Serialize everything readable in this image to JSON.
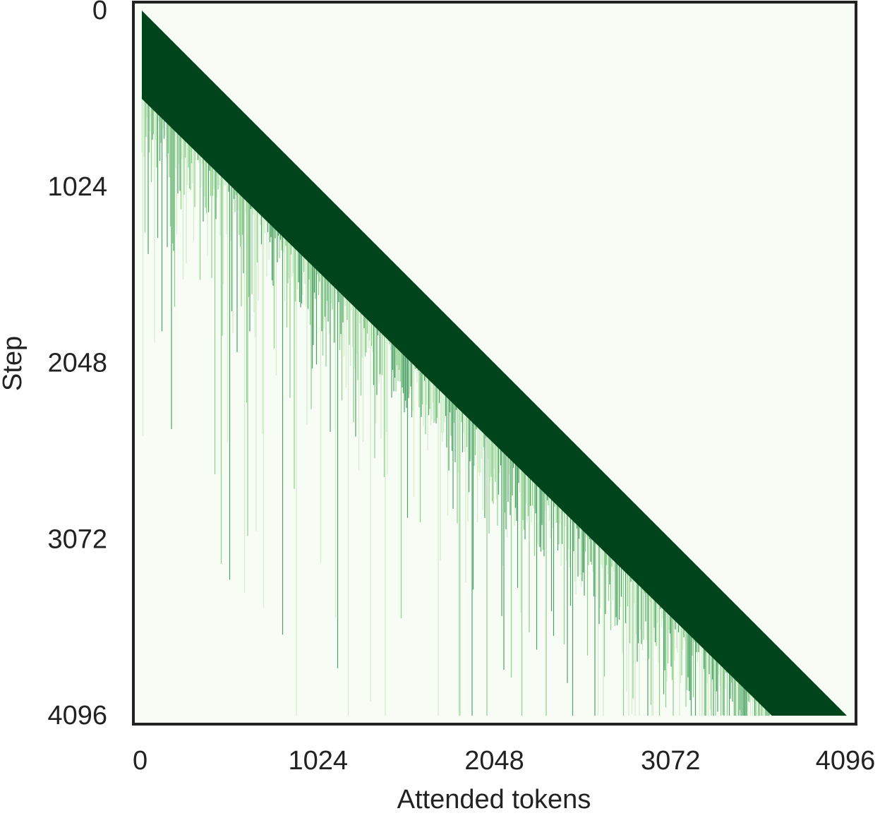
{
  "chart_data": {
    "type": "heatmap",
    "xlabel": "Attended tokens",
    "ylabel": "Step",
    "xlim": [
      0,
      4096
    ],
    "ylim": [
      0,
      4096
    ],
    "xticks": [
      0,
      1024,
      2048,
      3072,
      4096
    ],
    "yticks": [
      0,
      1024,
      2048,
      3072,
      4096
    ],
    "colors": {
      "low": "#f7fcf5",
      "high": "#00441b"
    }
  }
}
